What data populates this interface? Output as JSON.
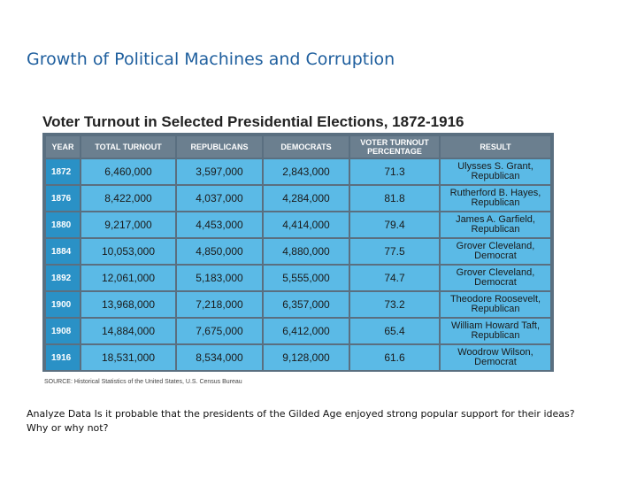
{
  "slide": {
    "title": "Growth of Political Machines and Corruption",
    "question": "Analyze Data Is it probable that the presidents of the Gilded Age enjoyed strong popular support for their ideas? Why or why not?"
  },
  "table": {
    "heading": "Voter Turnout in Selected Presidential Elections, 1872-1916",
    "columns": [
      "YEAR",
      "TOTAL TURNOUT",
      "REPUBLICANS",
      "DEMOCRATS",
      "VOTER TURNOUT PERCENTAGE",
      "RESULT"
    ],
    "rows": [
      {
        "year": "1872",
        "total": "6,460,000",
        "rep": "3,597,000",
        "dem": "2,843,000",
        "pct": "71.3",
        "result_name": "Ulysses S. Grant,",
        "result_party": "Republican"
      },
      {
        "year": "1876",
        "total": "8,422,000",
        "rep": "4,037,000",
        "dem": "4,284,000",
        "pct": "81.8",
        "result_name": "Rutherford B. Hayes,",
        "result_party": "Republican"
      },
      {
        "year": "1880",
        "total": "9,217,000",
        "rep": "4,453,000",
        "dem": "4,414,000",
        "pct": "79.4",
        "result_name": "James A. Garfield,",
        "result_party": "Republican"
      },
      {
        "year": "1884",
        "total": "10,053,000",
        "rep": "4,850,000",
        "dem": "4,880,000",
        "pct": "77.5",
        "result_name": "Grover Cleveland,",
        "result_party": "Democrat"
      },
      {
        "year": "1892",
        "total": "12,061,000",
        "rep": "5,183,000",
        "dem": "5,555,000",
        "pct": "74.7",
        "result_name": "Grover Cleveland,",
        "result_party": "Democrat"
      },
      {
        "year": "1900",
        "total": "13,968,000",
        "rep": "7,218,000",
        "dem": "6,357,000",
        "pct": "73.2",
        "result_name": "Theodore Roosevelt,",
        "result_party": "Republican"
      },
      {
        "year": "1908",
        "total": "14,884,000",
        "rep": "7,675,000",
        "dem": "6,412,000",
        "pct": "65.4",
        "result_name": "William Howard Taft,",
        "result_party": "Republican"
      },
      {
        "year": "1916",
        "total": "18,531,000",
        "rep": "8,534,000",
        "dem": "9,128,000",
        "pct": "61.6",
        "result_name": "Woodrow Wilson,",
        "result_party": "Democrat"
      }
    ],
    "source": "SOURCE: Historical Statistics of the United States, U.S. Census Bureau"
  },
  "colors": {
    "title": "#1f5f9e",
    "header_bg": "#6b7f8f",
    "year_bg": "#2a91c6",
    "cell_bg": "#5bbae6"
  }
}
